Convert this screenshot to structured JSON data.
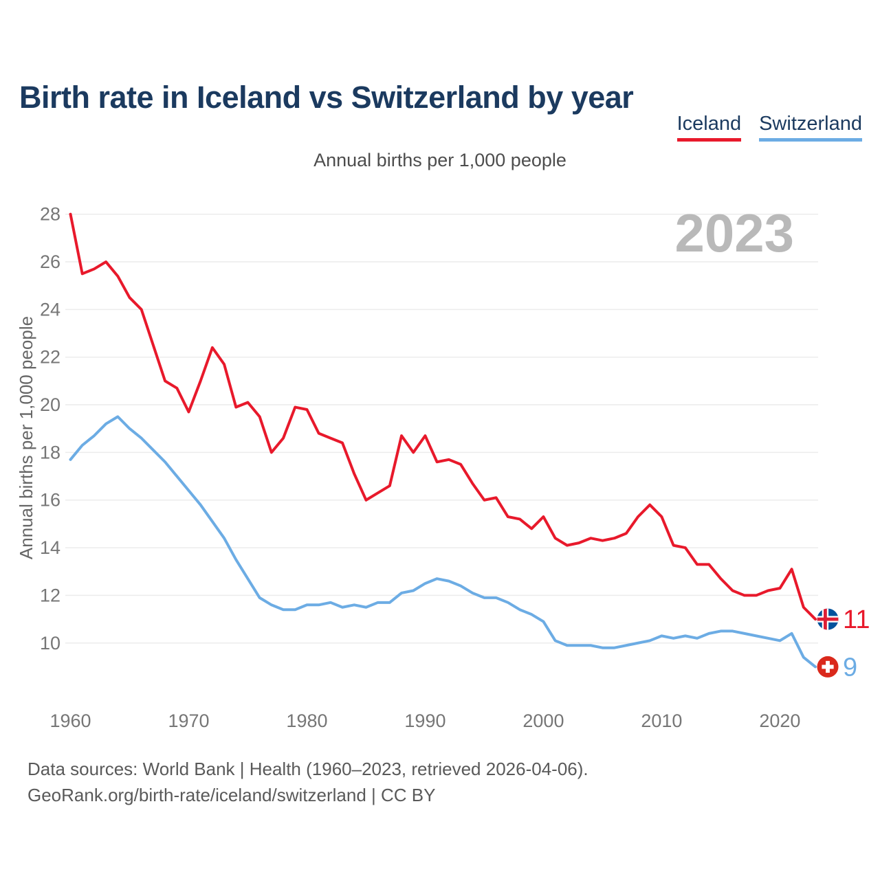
{
  "header": {
    "title": "Birth rate in Iceland vs Switzerland by year"
  },
  "legend": {
    "items": [
      {
        "label": "Iceland",
        "color": "#e8192b"
      },
      {
        "label": "Switzerland",
        "color": "#6cace4"
      }
    ]
  },
  "subtitle": "Annual births per 1,000 people",
  "chart_data": {
    "type": "line",
    "title": "Birth rate in Iceland vs Switzerland by year",
    "ylabel": "Annual births per 1,000 people",
    "xlabel": "",
    "watermark": "2023",
    "grid": true,
    "legend_position": "top-right",
    "xlim": [
      1960,
      2023
    ],
    "ylim": [
      8,
      28.5
    ],
    "yticks": [
      10,
      12,
      14,
      16,
      18,
      20,
      22,
      24,
      26,
      28
    ],
    "xticks": [
      1960,
      1970,
      1980,
      1990,
      2000,
      2010,
      2020
    ],
    "years": [
      1960,
      1961,
      1962,
      1963,
      1964,
      1965,
      1966,
      1967,
      1968,
      1969,
      1970,
      1971,
      1972,
      1973,
      1974,
      1975,
      1976,
      1977,
      1978,
      1979,
      1980,
      1981,
      1982,
      1983,
      1984,
      1985,
      1986,
      1987,
      1988,
      1989,
      1990,
      1991,
      1992,
      1993,
      1994,
      1995,
      1996,
      1997,
      1998,
      1999,
      2000,
      2001,
      2002,
      2003,
      2004,
      2005,
      2006,
      2007,
      2008,
      2009,
      2010,
      2011,
      2012,
      2013,
      2014,
      2015,
      2016,
      2017,
      2018,
      2019,
      2020,
      2021,
      2022,
      2023
    ],
    "series": [
      {
        "id": "iceland",
        "name": "Iceland",
        "color": "#e8192b",
        "flag": "iceland",
        "end_label": "11",
        "values": [
          28.0,
          25.5,
          25.7,
          26.0,
          25.4,
          24.5,
          24.0,
          22.5,
          21.0,
          20.7,
          19.7,
          21.0,
          22.4,
          21.7,
          19.9,
          20.1,
          19.5,
          18.0,
          18.6,
          19.9,
          19.8,
          18.8,
          18.6,
          18.4,
          17.1,
          16.0,
          16.3,
          16.6,
          18.7,
          18.0,
          18.7,
          17.6,
          17.7,
          17.5,
          16.7,
          16.0,
          16.1,
          15.3,
          15.2,
          14.8,
          15.3,
          14.4,
          14.1,
          14.2,
          14.4,
          14.3,
          14.4,
          14.6,
          15.3,
          15.8,
          15.3,
          14.1,
          14.0,
          13.3,
          13.3,
          12.7,
          12.2,
          12.0,
          12.0,
          12.2,
          12.3,
          13.1,
          11.5,
          11.0
        ]
      },
      {
        "id": "switzerland",
        "name": "Switzerland",
        "color": "#6cace4",
        "flag": "switzerland",
        "end_label": "9",
        "values": [
          17.7,
          18.3,
          18.7,
          19.2,
          19.5,
          19.0,
          18.6,
          18.1,
          17.6,
          17.0,
          16.4,
          15.8,
          15.1,
          14.4,
          13.5,
          12.7,
          11.9,
          11.6,
          11.4,
          11.4,
          11.6,
          11.6,
          11.7,
          11.5,
          11.6,
          11.5,
          11.7,
          11.7,
          12.1,
          12.2,
          12.5,
          12.7,
          12.6,
          12.4,
          12.1,
          11.9,
          11.9,
          11.7,
          11.4,
          11.2,
          10.9,
          10.1,
          9.9,
          9.9,
          9.9,
          9.8,
          9.8,
          9.9,
          10.0,
          10.1,
          10.3,
          10.2,
          10.3,
          10.2,
          10.4,
          10.5,
          10.5,
          10.4,
          10.3,
          10.2,
          10.1,
          10.4,
          9.4,
          9.0
        ]
      }
    ],
    "flag_colors": {
      "iceland_blue": "#02529c",
      "iceland_red": "#dc1e35",
      "swiss_red": "#da291c",
      "white": "#ffffff"
    }
  },
  "footer": {
    "line1": "Data sources: World Bank | Health (1960–2023, retrieved 2026-04-06).",
    "line2": "GeoRank.org/birth-rate/iceland/switzerland | CC BY"
  }
}
